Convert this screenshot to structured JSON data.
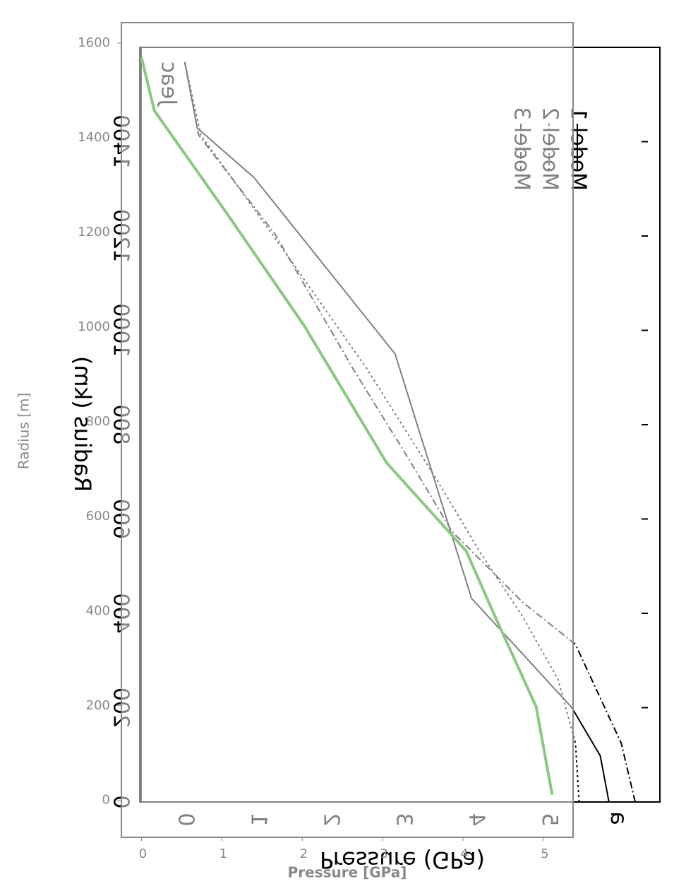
{
  "chart_data": [
    {
      "type": "line",
      "xlabel": "Pressure (GPa)",
      "ylabel": "Radius (km)",
      "panel_label": "a",
      "annotation": "Jeac",
      "xlim": [
        -0.62,
        6.53
      ],
      "ylim": [
        0,
        1600
      ],
      "xticks": [
        0,
        1,
        2,
        3,
        4,
        5
      ],
      "yticks": [
        0,
        200,
        400,
        600,
        800,
        1000,
        1200,
        1400
      ],
      "color": "#000000",
      "series": [
        {
          "name": "Model 1",
          "dash": "solid",
          "x": [
            5.83,
            5.71,
            5.32,
            3.94,
            2.89,
            0.95,
            0.17,
            0
          ],
          "y": [
            0,
            98,
            200,
            432,
            950,
            1324,
            1429,
            1569
          ]
        },
        {
          "name": "Model 2",
          "dash": "dotted",
          "x": [
            5.42,
            5.37,
            5.13,
            4.64,
            4.06,
            3.48,
            2.5,
            1.34,
            0.22,
            0
          ],
          "y": [
            0,
            124,
            260,
            394,
            529,
            679,
            919,
            1174,
            1414,
            1567
          ]
        },
        {
          "name": "Model 3",
          "dash": "dashdot",
          "x": [
            6.19,
            6.0,
            5.37,
            4.64,
            3.67,
            3.09,
            2.31,
            1.24,
            0.19,
            0
          ],
          "y": [
            0,
            124,
            334,
            424,
            574,
            724,
            919,
            1204,
            1414,
            1567
          ]
        }
      ]
    },
    {
      "type": "line",
      "xlabel": "Pressure [GPa]",
      "ylabel": "Radius [m]",
      "xlim": [
        -0.25,
        5.37
      ],
      "ylim": [
        -78,
        1643
      ],
      "xticks": [
        0,
        1,
        2,
        3,
        4,
        5
      ],
      "yticks": [
        0,
        200,
        400,
        600,
        800,
        1000,
        1200,
        1400,
        1600
      ],
      "color": "#888888",
      "series": [
        {
          "color": "#8cc784",
          "x": [
            5.11,
            4.91,
            4.39,
            4.04,
            3.05,
            2.02,
            1.05,
            0.16,
            0
          ],
          "y": [
            12,
            198,
            392,
            527,
            713,
            1004,
            1243,
            1457,
            1569
          ]
        }
      ]
    }
  ]
}
